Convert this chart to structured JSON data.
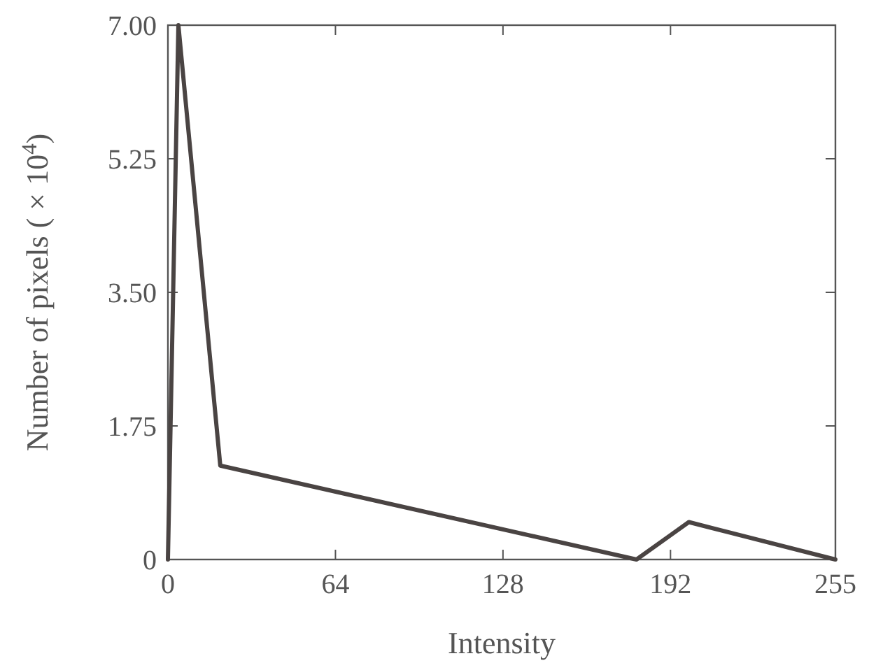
{
  "chart_data": {
    "type": "line",
    "xlabel": "Intensity",
    "ylabel": "Number of pixels ( × 10$^{4}$)",
    "x": [
      0,
      4,
      20,
      179,
      199,
      255
    ],
    "series": [
      {
        "color": "#4a4443",
        "values": [
          0,
          7.0,
          1.23,
          0,
          0.49,
          0
        ]
      }
    ],
    "xlim": [
      0,
      255
    ],
    "xticks": [
      0,
      64,
      128,
      192,
      255
    ],
    "ylim": [
      0,
      7
    ],
    "yticks": [
      {
        "value": 0,
        "label": "0"
      },
      {
        "value": 1.75,
        "label": "1.75"
      },
      {
        "value": 3.5,
        "label": "3.50"
      },
      {
        "value": 5.25,
        "label": "5.25"
      },
      {
        "value": 7,
        "label": "7.00"
      }
    ],
    "grid": false,
    "marker": "none",
    "line_style": "solid"
  }
}
